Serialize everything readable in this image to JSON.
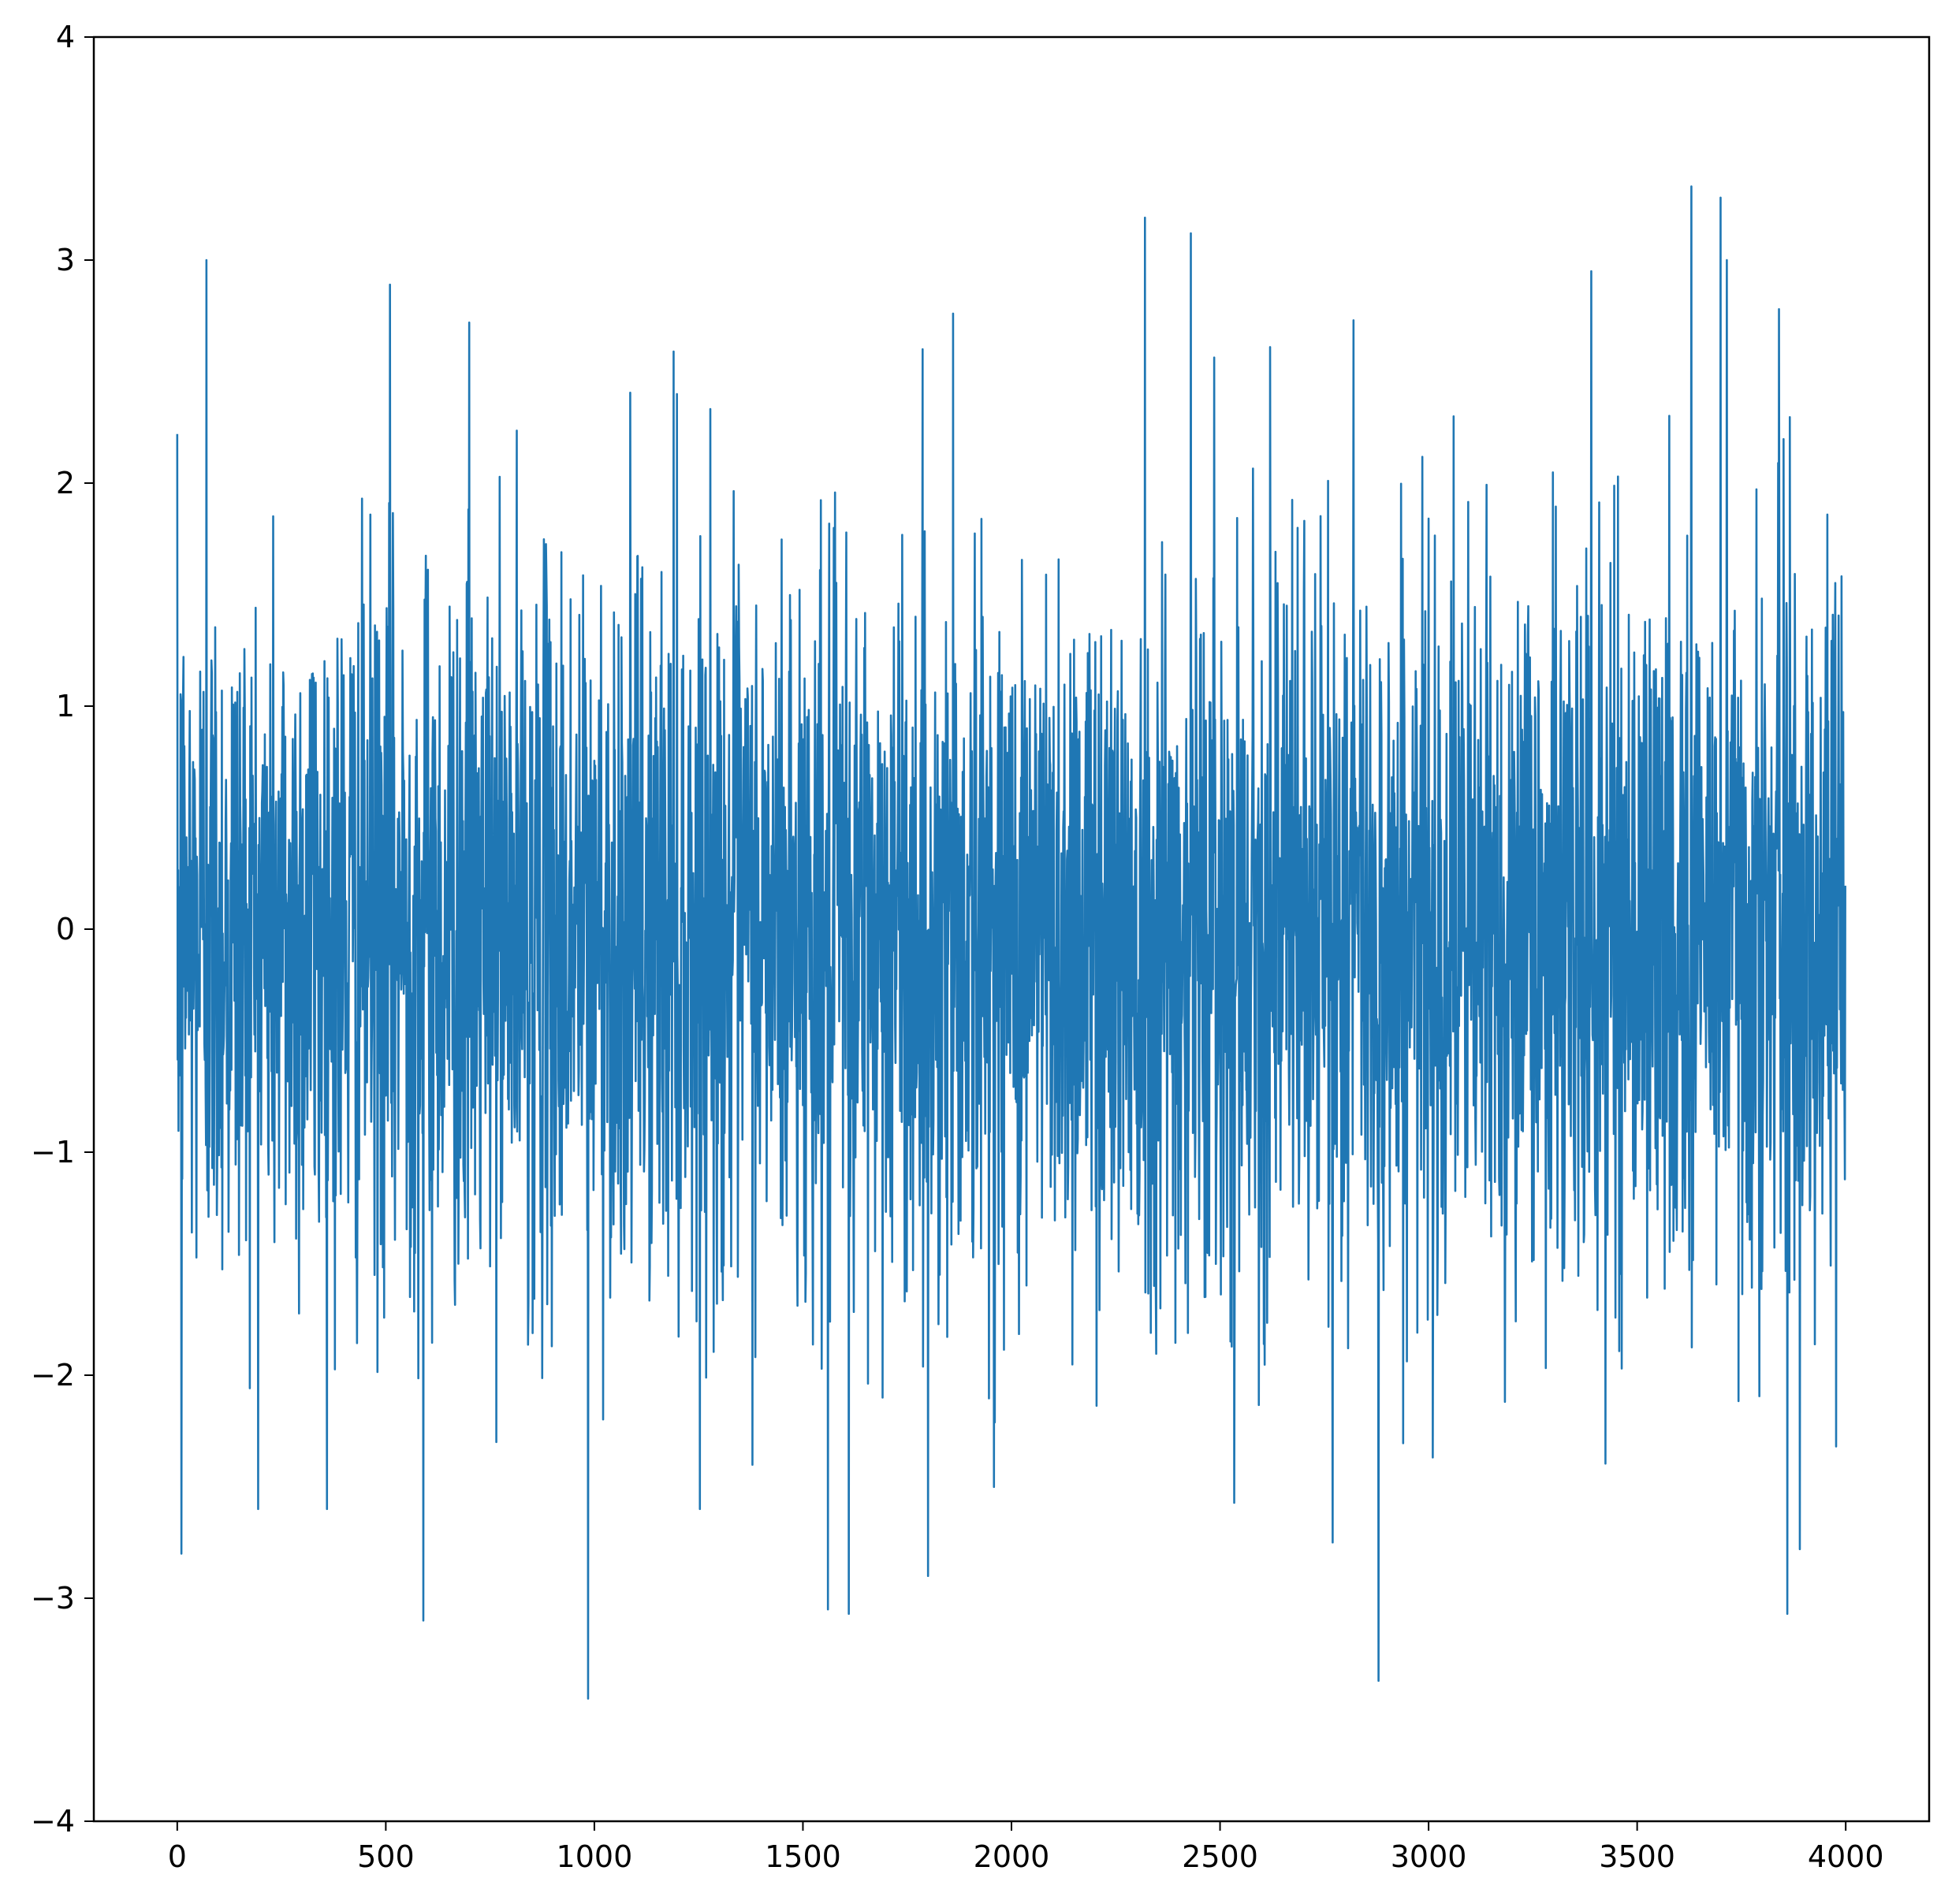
{
  "chart_data": {
    "type": "line",
    "title": "",
    "xlabel": "",
    "ylabel": "",
    "xlim": [
      -200,
      4200
    ],
    "ylim": [
      -4,
      4
    ],
    "xticks": [
      0,
      500,
      1000,
      1500,
      2000,
      2500,
      3000,
      3500,
      4000
    ],
    "xtick_labels": [
      "0",
      "500",
      "1000",
      "1500",
      "2000",
      "2500",
      "3000",
      "3500",
      "4000"
    ],
    "yticks": [
      -4,
      -3,
      -2,
      -1,
      0,
      1,
      2,
      3,
      4
    ],
    "ytick_labels": [
      "−4",
      "−3",
      "−2",
      "−1",
      "0",
      "1",
      "2",
      "3",
      "4"
    ],
    "grid": false,
    "legend": "none",
    "series": [
      {
        "color": "#1f77b4",
        "n_points": 4000,
        "x_start": 0,
        "x_end": 3999,
        "distribution": "white noise, mean approximately 0, standard deviation approximately 0.8",
        "highlighted_peaks": [
          {
            "x": 10,
            "y": 2.35
          },
          {
            "x": 70,
            "y": 3.0
          },
          {
            "x": 510,
            "y": 2.89
          },
          {
            "x": 700,
            "y": 2.72
          },
          {
            "x": 1190,
            "y": 2.59
          },
          {
            "x": 1860,
            "y": 2.76
          },
          {
            "x": 2320,
            "y": 3.19
          },
          {
            "x": 2430,
            "y": 3.12
          },
          {
            "x": 2620,
            "y": 2.61
          },
          {
            "x": 2820,
            "y": 2.73
          },
          {
            "x": 3390,
            "y": 2.95
          },
          {
            "x": 3630,
            "y": 3.33
          },
          {
            "x": 3700,
            "y": 3.28
          },
          {
            "x": 3715,
            "y": 3.0
          },
          {
            "x": 3840,
            "y": 2.78
          }
        ],
        "highlighted_troughs": [
          {
            "x": 10,
            "y": -2.8
          },
          {
            "x": 590,
            "y": -3.1
          },
          {
            "x": 985,
            "y": -3.45
          },
          {
            "x": 1560,
            "y": -3.05
          },
          {
            "x": 1610,
            "y": -3.07
          },
          {
            "x": 1800,
            "y": -2.9
          },
          {
            "x": 2770,
            "y": -2.75
          },
          {
            "x": 2880,
            "y": -3.37
          },
          {
            "x": 3860,
            "y": -3.07
          },
          {
            "x": 3890,
            "y": -2.78
          }
        ]
      }
    ]
  }
}
